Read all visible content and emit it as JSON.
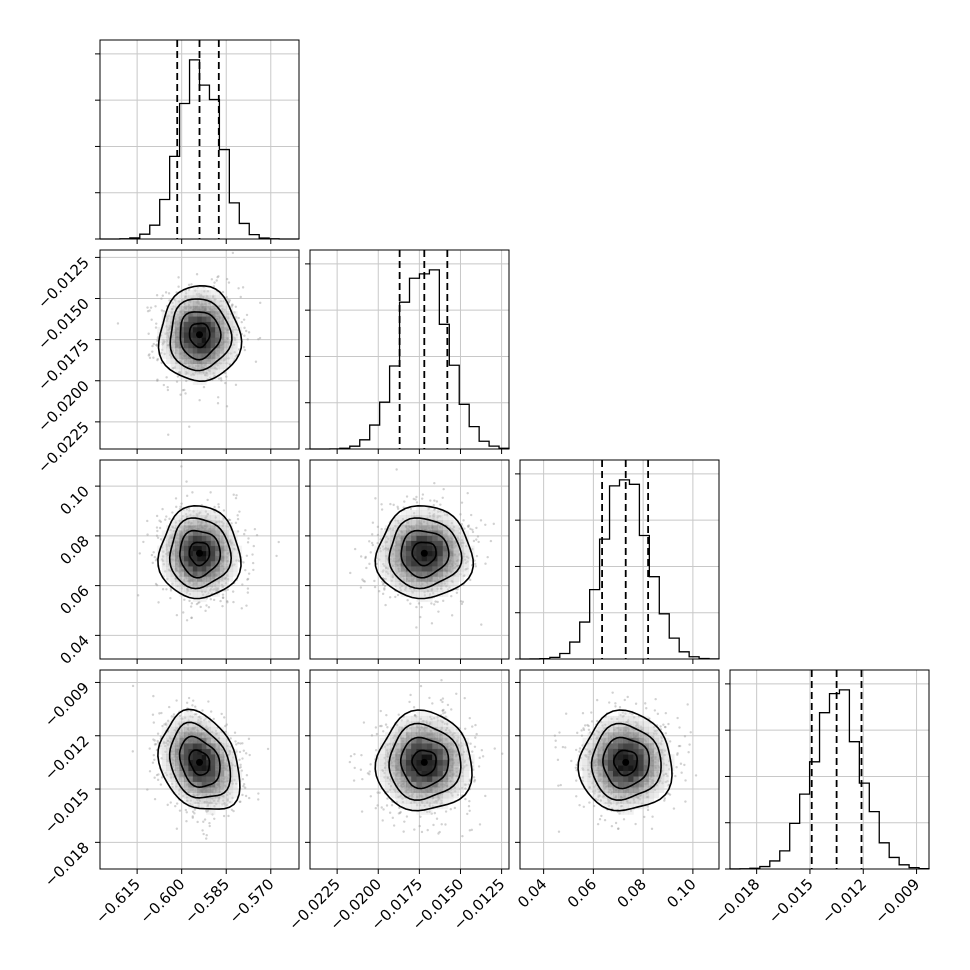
{
  "chart_data": {
    "type": "corner",
    "grid": true,
    "parameters": [
      {
        "id": "p1",
        "range": [
          -0.6275,
          -0.5605
        ],
        "ticks": [
          -0.615,
          -0.6,
          -0.585,
          -0.57
        ],
        "tick_labels": [
          "−0.615",
          "−0.600",
          "−0.585",
          "−0.570"
        ],
        "median": -0.594,
        "q16": -0.6015,
        "q84": -0.5875,
        "sigma": 0.0068
      },
      {
        "id": "p2",
        "range": [
          -0.02415,
          -0.01205
        ],
        "ticks": [
          -0.0225,
          -0.02,
          -0.0175,
          -0.015,
          -0.0125
        ],
        "tick_labels": [
          "−0.0225",
          "−0.0200",
          "−0.0175",
          "−0.0150",
          "−0.0125"
        ],
        "median": -0.0172,
        "q16": -0.0187,
        "q84": -0.0158,
        "sigma": 0.00145
      },
      {
        "id": "p3",
        "range": [
          0.0305,
          0.1105
        ],
        "ticks": [
          0.04,
          0.06,
          0.08,
          0.1
        ],
        "tick_labels": [
          "0.04",
          "0.06",
          "0.08",
          "0.10"
        ],
        "median": 0.073,
        "q16": 0.0635,
        "q84": 0.082,
        "sigma": 0.0093
      },
      {
        "id": "p4",
        "range": [
          -0.0195,
          -0.0083
        ],
        "ticks": [
          -0.018,
          -0.015,
          -0.012,
          -0.009
        ],
        "tick_labels": [
          "−0.018",
          "−0.015",
          "−0.012",
          "−0.009"
        ],
        "median": -0.0135,
        "q16": -0.0149,
        "q84": -0.0121,
        "sigma": 0.0014
      }
    ],
    "correlations": [
      {
        "pair": [
          "p1",
          "p2"
        ],
        "rho": 0.0
      },
      {
        "pair": [
          "p1",
          "p3"
        ],
        "rho": 0.0
      },
      {
        "pair": [
          "p2",
          "p3"
        ],
        "rho": 0.0
      },
      {
        "pair": [
          "p1",
          "p4"
        ],
        "rho": -0.25
      },
      {
        "pair": [
          "p2",
          "p4"
        ],
        "rho": 0.0
      },
      {
        "pair": [
          "p3",
          "p4"
        ],
        "rho": 0.0
      }
    ],
    "contour_sigma_levels": [
      0.5,
      1.0,
      1.5,
      2.0
    ],
    "histogram_bins": 20
  }
}
